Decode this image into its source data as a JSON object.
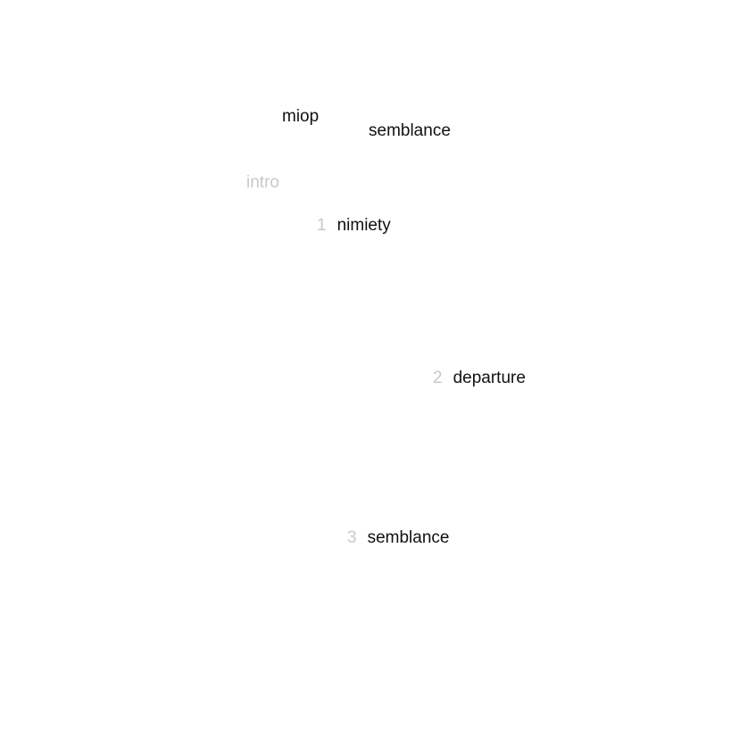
{
  "header": {
    "site_title": "miop",
    "current_title": "semblance"
  },
  "nav": {
    "intro_label": "intro"
  },
  "tracks": [
    {
      "number": "1",
      "title": "nimiety"
    },
    {
      "number": "2",
      "title": "departure"
    },
    {
      "number": "3",
      "title": "semblance"
    }
  ],
  "colors": {
    "text": "#111111",
    "muted": "#c8c8c8",
    "background": "#ffffff"
  }
}
